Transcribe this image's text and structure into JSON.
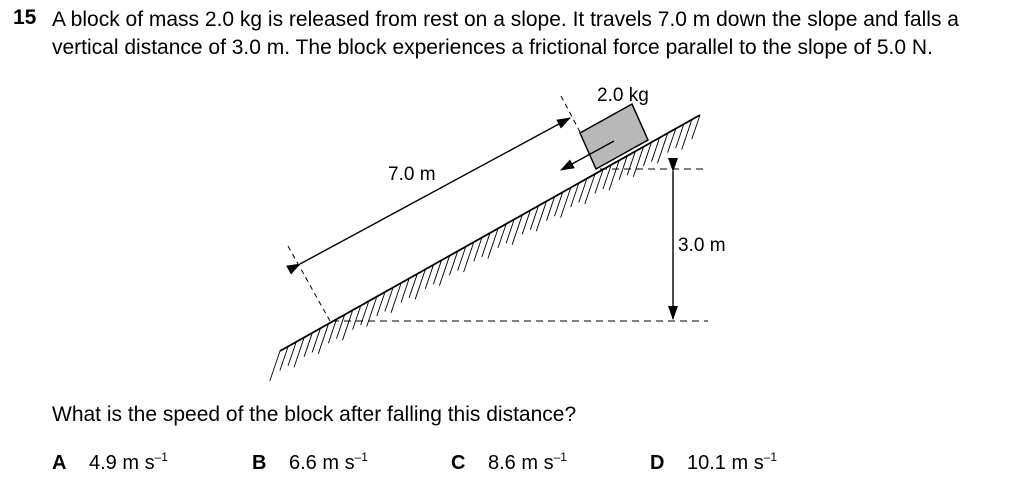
{
  "question": {
    "number": "15",
    "stem_line_1": "A block of mass 2.0 kg is released from rest on a slope. It travels 7.0 m down the slope and falls a",
    "stem_line_2": "vertical distance of 3.0 m. The block experiences a frictional force parallel to the slope of 5.0 N.",
    "prompt": "What is the speed of the block after falling this distance?"
  },
  "diagram": {
    "mass_label": "2.0 kg",
    "slope_length_label": "7.0 m",
    "height_label": "3.0 m",
    "block_color": "#b8b8b8"
  },
  "options": [
    {
      "letter": "A",
      "value": "4.9 m s",
      "exponent": "–1"
    },
    {
      "letter": "B",
      "value": "6.6 m s",
      "exponent": "–1"
    },
    {
      "letter": "C",
      "value": "8.6 m s",
      "exponent": "–1"
    },
    {
      "letter": "D",
      "value": "10.1 m s",
      "exponent": "–1"
    }
  ]
}
